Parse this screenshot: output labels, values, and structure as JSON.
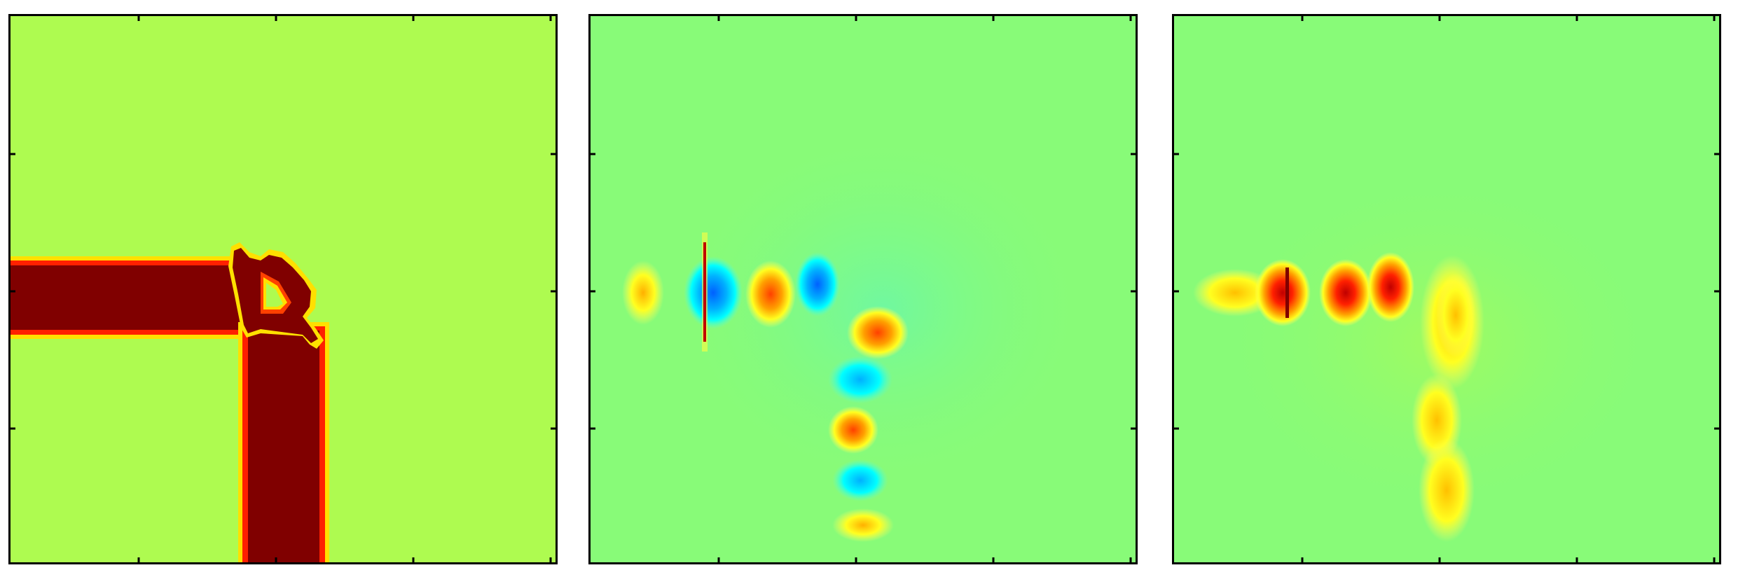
{
  "figure": {
    "panels": [
      {
        "id": "panel-1",
        "colormap": "jet",
        "colors": {
          "background": "#aefb50",
          "structure": "#800000",
          "edge": "#ff2000",
          "rim": "#ffe000"
        }
      },
      {
        "id": "panel-2",
        "colormap": "jet",
        "colors": {
          "background": "#88fb78",
          "positive": "#ff4000",
          "negative": "#0090ff"
        }
      },
      {
        "id": "panel-3",
        "colormap": "jet",
        "colors": {
          "background": "#88fb78",
          "positive": "#e00000"
        }
      }
    ]
  }
}
